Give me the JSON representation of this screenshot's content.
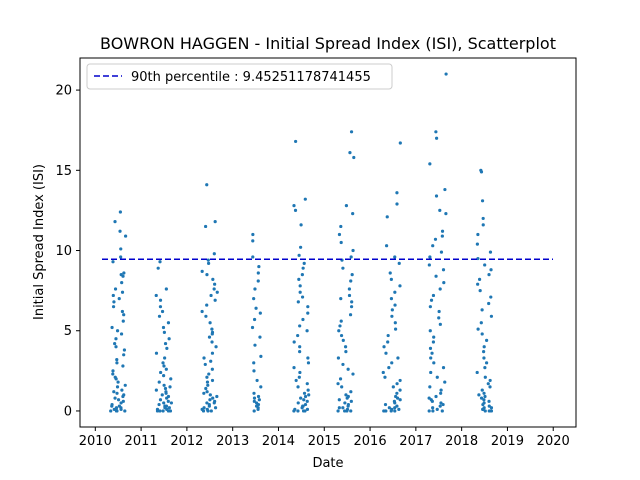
{
  "chart_data": {
    "type": "scatter",
    "title": "BOWRON HAGGEN - Initial Spread Index (ISI), Scatterplot",
    "xlabel": "Date",
    "ylabel": "Initial Spread Index (ISI)",
    "xlim": [
      "2009-09-01",
      "2020-07-01"
    ],
    "ylim": [
      -1,
      22
    ],
    "x_ticks": [
      "2010",
      "2011",
      "2012",
      "2013",
      "2014",
      "2015",
      "2016",
      "2017",
      "2018",
      "2019",
      "2020"
    ],
    "y_ticks": [
      0,
      5,
      10,
      15,
      20
    ],
    "grid": false,
    "legend": {
      "position": "top-left",
      "entries": [
        "90th percentile : 9.45251178741455"
      ]
    },
    "percentile_line": {
      "label": "90th percentile : 9.45251178741455",
      "value": 9.45251178741455,
      "color": "#0000cc",
      "style": "dashed"
    },
    "point_color": "#1f77b4",
    "series": [
      {
        "seasons": [
          {
            "year": 2010,
            "start": "2010-05-01",
            "end": "2010-08-31",
            "points": [
              12.4,
              11.8,
              11.2,
              10.9,
              10.1,
              9.6,
              9.3,
              8.6,
              8.5,
              8.4,
              8.0,
              7.6,
              7.4,
              7.2,
              7.0,
              6.8,
              6.5,
              6.2,
              6.0,
              5.6,
              5.2,
              5.0,
              4.8,
              4.5,
              4.2,
              4.0,
              3.8,
              3.5,
              3.2,
              3.0,
              2.8,
              2.5,
              2.3,
              2.1,
              2.0,
              1.8,
              1.6,
              1.5,
              1.3,
              1.2,
              1.1,
              1.0,
              0.9,
              0.8,
              0.7,
              0.6,
              0.5,
              0.4,
              0.3,
              0.3,
              0.2,
              0.2,
              0.1,
              0.1,
              0.1,
              0.0,
              0.0,
              0.0,
              0.0,
              0.0
            ]
          },
          {
            "year": 2011,
            "start": "2011-05-01",
            "end": "2011-08-31",
            "points": [
              9.3,
              8.9,
              7.6,
              7.2,
              6.9,
              6.5,
              6.2,
              5.9,
              5.5,
              5.2,
              4.9,
              4.5,
              4.2,
              3.9,
              3.6,
              3.3,
              3.0,
              2.8,
              2.6,
              2.4,
              2.2,
              2.0,
              1.8,
              1.6,
              1.5,
              1.4,
              1.3,
              1.2,
              1.1,
              1.0,
              0.9,
              0.8,
              0.7,
              0.6,
              0.5,
              0.5,
              0.4,
              0.3,
              0.3,
              0.2,
              0.2,
              0.1,
              0.1,
              0.0,
              0.0,
              0.0,
              0.0,
              0.0
            ]
          },
          {
            "year": 2012,
            "start": "2012-05-01",
            "end": "2012-08-31",
            "points": [
              14.1,
              11.8,
              11.5,
              9.8,
              9.4,
              9.2,
              8.7,
              8.5,
              8.2,
              7.9,
              7.6,
              7.4,
              7.2,
              6.9,
              6.6,
              6.2,
              5.9,
              5.5,
              5.1,
              4.9,
              4.8,
              4.6,
              4.3,
              4.0,
              3.6,
              3.3,
              3.1,
              2.9,
              2.6,
              2.3,
              2.1,
              1.9,
              1.8,
              1.6,
              1.4,
              1.2,
              1.1,
              1.0,
              0.9,
              0.8,
              0.7,
              0.6,
              0.5,
              0.5,
              0.4,
              0.3,
              0.2,
              0.2,
              0.1,
              0.1,
              0.0,
              0.0,
              0.0
            ]
          },
          {
            "year": 2013,
            "start": "2013-06-01",
            "end": "2013-08-15",
            "points": [
              11.0,
              10.6,
              9.6,
              9.0,
              8.6,
              8.1,
              7.6,
              7.0,
              6.4,
              6.1,
              5.7,
              5.2,
              4.6,
              4.1,
              3.4,
              3.0,
              2.5,
              1.9,
              1.5,
              1.1,
              0.9,
              0.8,
              0.7,
              0.6,
              0.5,
              0.4,
              0.3,
              0.2,
              0.1,
              0.0
            ]
          },
          {
            "year": 2014,
            "start": "2014-05-01",
            "end": "2014-08-31",
            "points": [
              16.8,
              13.2,
              12.8,
              12.5,
              11.6,
              10.2,
              9.7,
              9.2,
              8.9,
              8.5,
              8.2,
              7.8,
              7.4,
              7.1,
              6.8,
              6.5,
              6.1,
              5.7,
              5.3,
              5.0,
              4.7,
              4.3,
              4.0,
              3.7,
              3.3,
              3.0,
              2.7,
              2.4,
              2.1,
              1.9,
              1.7,
              1.5,
              1.3,
              1.1,
              1.0,
              0.9,
              0.8,
              0.7,
              0.6,
              0.5,
              0.4,
              0.3,
              0.3,
              0.2,
              0.1,
              0.1,
              0.0,
              0.0,
              0.0,
              0.0
            ]
          },
          {
            "year": 2015,
            "start": "2015-04-15",
            "end": "2015-08-31",
            "points": [
              17.4,
              16.1,
              15.8,
              12.8,
              12.3,
              11.5,
              11.0,
              10.5,
              10.0,
              9.6,
              9.4,
              8.9,
              8.5,
              8.1,
              7.6,
              7.2,
              7.0,
              6.8,
              6.5,
              6.0,
              5.6,
              5.3,
              5.0,
              4.7,
              4.4,
              4.0,
              3.7,
              3.3,
              2.9,
              2.6,
              2.3,
              2.0,
              1.7,
              1.5,
              1.2,
              1.0,
              0.9,
              0.8,
              0.7,
              0.6,
              0.5,
              0.4,
              0.3,
              0.2,
              0.2,
              0.1,
              0.0,
              0.0,
              0.0,
              0.0
            ]
          },
          {
            "year": 2016,
            "start": "2016-04-15",
            "end": "2016-08-31",
            "points": [
              16.7,
              13.6,
              12.9,
              12.1,
              10.3,
              9.6,
              9.2,
              8.6,
              8.2,
              7.8,
              7.4,
              7.0,
              6.6,
              6.3,
              5.9,
              5.5,
              5.1,
              4.7,
              4.3,
              4.0,
              3.6,
              3.3,
              3.0,
              2.7,
              2.4,
              2.1,
              1.9,
              1.7,
              1.5,
              1.3,
              1.1,
              0.9,
              0.8,
              0.7,
              0.6,
              0.5,
              0.4,
              0.3,
              0.2,
              0.2,
              0.1,
              0.1,
              0.0,
              0.0,
              0.0,
              0.0,
              0.0
            ]
          },
          {
            "year": 2017,
            "start": "2017-04-15",
            "end": "2017-08-31",
            "points": [
              21.0,
              17.4,
              17.0,
              15.4,
              13.8,
              13.4,
              12.5,
              12.3,
              11.2,
              10.9,
              10.7,
              10.3,
              9.9,
              9.6,
              9.1,
              8.8,
              8.4,
              8.0,
              7.6,
              7.2,
              6.9,
              6.5,
              6.2,
              5.8,
              5.4,
              5.0,
              4.6,
              4.3,
              3.9,
              3.6,
              3.3,
              3.0,
              2.7,
              2.4,
              2.1,
              1.8,
              1.5,
              1.3,
              1.1,
              0.9,
              0.8,
              0.7,
              0.6,
              0.5,
              0.4,
              0.3,
              0.2,
              0.1,
              0.0,
              0.0,
              0.0
            ]
          },
          {
            "year": 2018,
            "start": "2018-05-01",
            "end": "2018-08-31",
            "points": [
              15.0,
              14.9,
              13.1,
              12.0,
              11.6,
              11.0,
              10.4,
              9.9,
              9.5,
              9.1,
              8.8,
              8.5,
              8.2,
              7.9,
              7.5,
              7.1,
              6.7,
              6.3,
              5.9,
              5.5,
              5.1,
              4.8,
              4.4,
              4.0,
              3.7,
              3.3,
              3.0,
              2.7,
              2.4,
              2.1,
              1.9,
              1.7,
              1.5,
              1.3,
              1.1,
              1.0,
              0.9,
              0.8,
              0.7,
              0.6,
              0.5,
              0.4,
              0.3,
              0.2,
              0.2,
              0.1,
              0.1,
              0.0,
              0.0,
              0.0,
              0.0
            ]
          }
        ]
      }
    ]
  }
}
